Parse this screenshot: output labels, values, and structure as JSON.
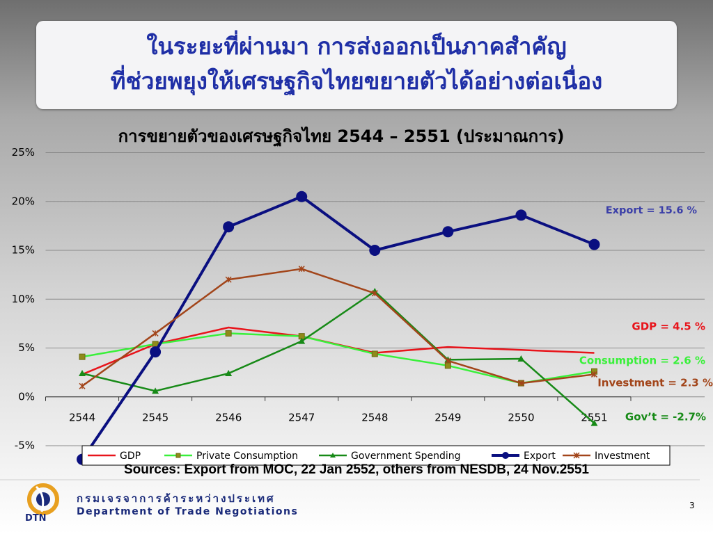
{
  "header": {
    "title_lines": [
      "ในระยะที่ผ่านมา การส่งออกเป็นภาคสำคัญ",
      "ที่ช่วยพยุงให้เศรษฐกิจไทยขยายตัวได้อย่างต่อเนื่อง"
    ]
  },
  "chart_data": {
    "type": "line",
    "title": "การขยายตัวของเศรษฐกิจไทย 2544 – 2551 (ประมาณการ)",
    "categories": [
      "2544",
      "2545",
      "2546",
      "2547",
      "2548",
      "2549",
      "2550",
      "2551"
    ],
    "series": [
      {
        "name": "GDP",
        "color": "#e8141b",
        "marker": "none",
        "line_width": 2.5,
        "values": [
          2.3,
          5.4,
          7.1,
          6.2,
          4.5,
          5.1,
          4.8,
          4.5
        ]
      },
      {
        "name": "Private Consumption",
        "color": "#39f03a",
        "marker": "square",
        "line_width": 2.5,
        "values": [
          4.1,
          5.4,
          6.5,
          6.2,
          4.4,
          3.2,
          1.4,
          2.6
        ]
      },
      {
        "name": "Government Spending",
        "color": "#178a17",
        "marker": "triangle",
        "line_width": 2.5,
        "values": [
          2.4,
          0.6,
          2.4,
          5.7,
          10.8,
          3.8,
          3.9,
          -2.7
        ]
      },
      {
        "name": "Export",
        "color": "#0a0f80",
        "marker": "circle",
        "line_width": 4,
        "values": [
          -6.4,
          4.6,
          17.4,
          20.5,
          15.0,
          16.9,
          18.6,
          15.6
        ]
      },
      {
        "name": "Investment",
        "color": "#a2451a",
        "marker": "x",
        "line_width": 2.5,
        "values": [
          1.1,
          6.5,
          12.0,
          13.1,
          10.6,
          3.7,
          1.4,
          2.3
        ]
      }
    ],
    "ylim": [
      -5,
      25
    ],
    "yticks": [
      {
        "value": -5,
        "label": "-5%"
      },
      {
        "value": 0,
        "label": "0%"
      },
      {
        "value": 5,
        "label": "5%"
      },
      {
        "value": 10,
        "label": "10%"
      },
      {
        "value": 15,
        "label": "15%"
      },
      {
        "value": 20,
        "label": "20%"
      },
      {
        "value": 25,
        "label": "25%"
      }
    ],
    "grid": true,
    "legend": "bottom",
    "annotations": [
      {
        "text": "Export = 15.6 %",
        "color": "#3b3fa8"
      },
      {
        "text": "GDP = 4.5 %",
        "color": "#e8141b"
      },
      {
        "text": "Consumption = 2.6 %",
        "color": "#39f03a"
      },
      {
        "text": "Investment = 2.3 %",
        "color": "#a2451a"
      },
      {
        "text": "Gov’t = -2.7%",
        "color": "#178a17"
      }
    ]
  },
  "footer": {
    "sources": "Sources:  Export from MOC, 22 Jan 2552, others from NESDB, 24 Nov.2551",
    "org_thai": "กรมเจรจาการค้าระหว่างประเทศ",
    "org_english": "Department of Trade Negotiations",
    "logo_text": "DTN",
    "page_number": "3"
  }
}
